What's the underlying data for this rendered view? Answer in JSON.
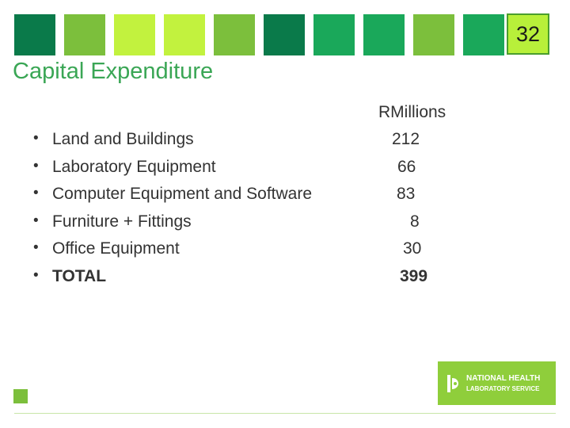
{
  "slide": {
    "number": "32",
    "title": "Capital Expenditure",
    "units_header": "RMillions"
  },
  "colors": {
    "dark_green": "#0a7a4a",
    "medium_green": "#7cbf3c",
    "lime": "#c2f23e",
    "bright_green": "#1aa85a",
    "title_green": "#3aa655"
  },
  "items": [
    {
      "label": "Land and Buildings",
      "value": "212"
    },
    {
      "label": "Laboratory Equipment",
      "value": "66"
    },
    {
      "label": "Computer Equipment and Software",
      "value": "83"
    },
    {
      "label": "Furniture + Fittings",
      "value": "8"
    },
    {
      "label": "Office Equipment",
      "value": "30"
    },
    {
      "label": "TOTAL",
      "value": "399"
    }
  ],
  "logo": {
    "line1": "NATIONAL HEALTH",
    "line2": "LABORATORY SERVICE"
  }
}
